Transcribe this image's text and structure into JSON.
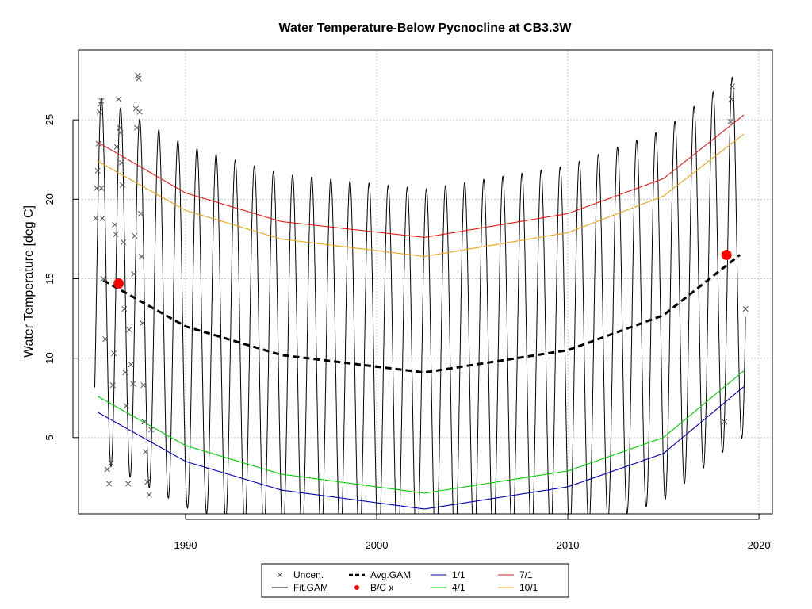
{
  "chart_data": {
    "type": "line",
    "title": "Water Temperature-Below Pycnocline at CB3.3W",
    "xlabel": "",
    "ylabel": "Water Temperature [deg C]",
    "xlim": [
      1984.4,
      2020.7
    ],
    "ylim": [
      0.2,
      29.4
    ],
    "x_ticks": [
      "1990",
      "2000",
      "2010",
      "2020"
    ],
    "y_ticks": [
      "5",
      "10",
      "15",
      "20",
      "25"
    ],
    "grid": true,
    "grid_style": "dotted",
    "legend_position": "bottom",
    "fit_gam_range": [
      1985.25,
      2019.3
    ],
    "series": [
      {
        "name": "7/1",
        "color": "#e41a1c",
        "x": [
          1985.4,
          1990,
          1995,
          2002.5,
          2010,
          2015,
          2019.2
        ],
        "values": [
          23.6,
          20.4,
          18.6,
          17.6,
          19.1,
          21.3,
          25.3
        ]
      },
      {
        "name": "10/1",
        "color": "#e8a317",
        "x": [
          1985.4,
          1990,
          1995,
          2002.5,
          2010,
          2015,
          2019.2
        ],
        "values": [
          22.4,
          19.3,
          17.5,
          16.4,
          17.9,
          20.2,
          24.1
        ]
      },
      {
        "name": "4/1",
        "color": "#00cc00",
        "x": [
          1985.4,
          1990,
          1995,
          2002.5,
          2010,
          2015,
          2019.2
        ],
        "values": [
          7.6,
          4.5,
          2.7,
          1.5,
          2.9,
          5.0,
          9.2
        ]
      },
      {
        "name": "1/1",
        "color": "#0000aa",
        "x": [
          1985.4,
          1990,
          1995,
          2002.5,
          2010,
          2015,
          2019.2
        ],
        "values": [
          6.6,
          3.5,
          1.7,
          0.5,
          1.9,
          4.0,
          8.2
        ]
      },
      {
        "name": "Avg.GAM",
        "color": "#000000",
        "x": [
          1985.7,
          1990,
          1995,
          2002.5,
          2010,
          2015,
          2019
        ],
        "values": [
          14.9,
          12.0,
          10.2,
          9.1,
          10.5,
          12.7,
          16.5
        ]
      }
    ],
    "fit_gam": {
      "name": "Fit.GAM",
      "color": "#000000"
    },
    "bc_points": {
      "name": "B/C x",
      "color": "#ff0000",
      "x": [
        1986.5,
        2018.3
      ],
      "values": [
        14.7,
        16.5
      ]
    },
    "uncensored": {
      "name": "Uncen.",
      "color": "#555555",
      "x": [
        1985.3,
        1985.35,
        1985.4,
        1985.45,
        1985.5,
        1985.55,
        1985.6,
        1985.6,
        1985.65,
        1985.7,
        1985.8,
        1985.9,
        1986.0,
        1986.1,
        1986.2,
        1986.25,
        1986.3,
        1986.35,
        1986.4,
        1986.5,
        1986.55,
        1986.6,
        1986.65,
        1986.7,
        1986.75,
        1986.8,
        1986.85,
        1986.9,
        1987.0,
        1987.05,
        1987.15,
        1987.25,
        1987.3,
        1987.35,
        1987.4,
        1987.45,
        1987.5,
        1987.55,
        1987.6,
        1987.65,
        1987.7,
        1987.75,
        1987.8,
        1987.85,
        1987.9,
        1988.0,
        1988.1,
        1988.2,
        2018.2,
        2018.5,
        2018.55,
        2018.6,
        2019.3
      ],
      "values": [
        18.8,
        20.7,
        21.8,
        23.5,
        25.5,
        26.0,
        26.2,
        20.7,
        18.8,
        15.0,
        11.2,
        3.0,
        2.1,
        3.4,
        8.3,
        10.3,
        18.4,
        17.8,
        23.3,
        26.3,
        24.5,
        24.2,
        22.3,
        20.9,
        17.3,
        13.1,
        9.1,
        7.0,
        2.1,
        11.8,
        9.6,
        8.4,
        15.3,
        17.7,
        25.7,
        24.5,
        27.8,
        27.6,
        25.5,
        19.1,
        16.4,
        12.2,
        8.3,
        6.0,
        4.1,
        2.2,
        1.4,
        5.5,
        6.0,
        24.9,
        26.3,
        27.1,
        13.1
      ]
    }
  },
  "legend": {
    "items": [
      {
        "label": "Uncen.",
        "symbol": "x",
        "color": "#555555"
      },
      {
        "label": "Avg.GAM",
        "symbol": "dashed",
        "color": "#000000"
      },
      {
        "label": "1/1",
        "symbol": "line",
        "color": "#0000aa"
      },
      {
        "label": "7/1",
        "symbol": "line",
        "color": "#e41a1c"
      },
      {
        "label": "Fit.GAM",
        "symbol": "line",
        "color": "#000000"
      },
      {
        "label": "B/C x",
        "symbol": "dot",
        "color": "#ff0000"
      },
      {
        "label": "4/1",
        "symbol": "line",
        "color": "#00cc00"
      },
      {
        "label": "10/1",
        "symbol": "line",
        "color": "#e8a317"
      }
    ]
  }
}
